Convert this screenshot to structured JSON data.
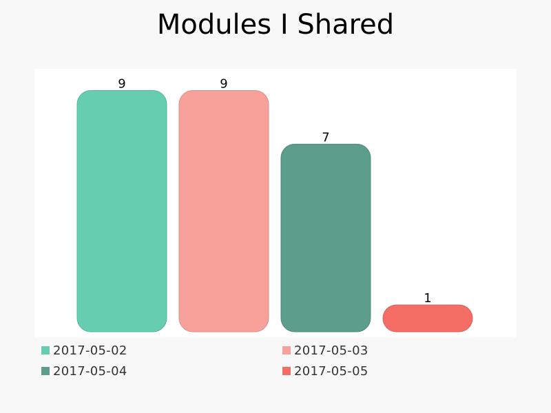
{
  "chart_data": {
    "type": "bar",
    "title": "Modules I Shared",
    "xlabel": "",
    "ylabel": "",
    "ylim": [
      0,
      9.5
    ],
    "grid": false,
    "legend_position": "bottom",
    "series": [
      {
        "name": "2017-05-02",
        "values": [
          9
        ],
        "color": "#66cdb0"
      },
      {
        "name": "2017-05-03",
        "values": [
          9
        ],
        "color": "#f8a19b"
      },
      {
        "name": "2017-05-04",
        "values": [
          7
        ],
        "color": "#5d9d8b"
      },
      {
        "name": "2017-05-05",
        "values": [
          1
        ],
        "color": "#f56e66"
      }
    ],
    "data_labels": [
      "9",
      "9",
      "7",
      "1"
    ]
  }
}
